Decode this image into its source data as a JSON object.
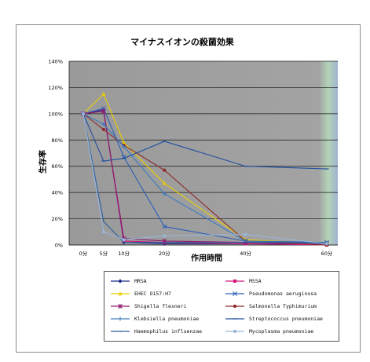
{
  "chart_data": {
    "type": "line",
    "title": "マイナスイオンの殺菌効果",
    "xlabel": "作用時間",
    "ylabel": "生存率",
    "x_categories": [
      "0分",
      "5分",
      "10分",
      "20分",
      "40分",
      "60分"
    ],
    "x_minutes": [
      0,
      5,
      10,
      20,
      40,
      60
    ],
    "y_ticks": [
      "0%",
      "20%",
      "40%",
      "60%",
      "80%",
      "100%",
      "120%",
      "140%"
    ],
    "ylim": [
      0,
      140
    ],
    "grid": true,
    "legend_position": "bottom",
    "series": [
      {
        "name": "MRSA",
        "color": "#1a2a8c",
        "marker": "diamond",
        "values": [
          100,
          103,
          2,
          1,
          1,
          1
        ]
      },
      {
        "name": "MSSA",
        "color": "#d4197a",
        "marker": "square",
        "values": [
          100,
          102,
          3,
          2,
          1,
          0
        ]
      },
      {
        "name": "EHEC O157:H7",
        "color": "#e8d000",
        "marker": "triangle",
        "values": [
          100,
          115,
          78,
          47,
          4,
          1
        ]
      },
      {
        "name": "Pseudomonas aeruginosa",
        "color": "#2b5fb8",
        "marker": "x",
        "values": [
          100,
          104,
          67,
          14,
          3,
          2
        ]
      },
      {
        "name": "Shigella flexneri",
        "color": "#8c1a6e",
        "marker": "star",
        "values": [
          100,
          102,
          5,
          3,
          2,
          1
        ]
      },
      {
        "name": "Salmonella Typhimurium",
        "color": "#8c2a2a",
        "marker": "circle",
        "values": [
          100,
          88,
          76,
          57,
          3,
          0
        ]
      },
      {
        "name": "Klebsiella pneumoniae",
        "color": "#3a7abf",
        "marker": "plus",
        "values": [
          100,
          92,
          75,
          39,
          3,
          1
        ]
      },
      {
        "name": "Streptococcus pneumoniae",
        "color": "#1f4fa0",
        "marker": "dash",
        "values": [
          100,
          64,
          66,
          79,
          60,
          58
        ]
      },
      {
        "name": "Haemophilus influenzae",
        "color": "#2e5f9e",
        "marker": "none",
        "values": [
          100,
          18,
          2,
          2,
          2,
          2
        ]
      },
      {
        "name": "Mycoplasma pneumoniae",
        "color": "#9ab6d8",
        "marker": "circle",
        "values": [
          100,
          10,
          4,
          7,
          8,
          1
        ]
      }
    ]
  }
}
